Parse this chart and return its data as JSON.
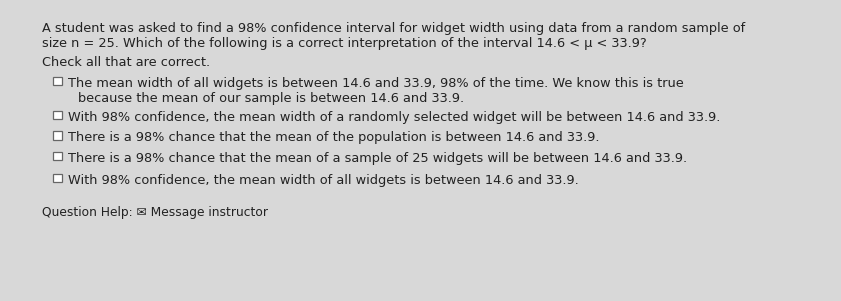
{
  "bg_color": "#d8d8d8",
  "card_color": "#f2f2f0",
  "title_line1": "A student was asked to find a 98% confidence interval for widget width using data from a random sample of",
  "title_line2": "size n = 25. Which of the following is a correct interpretation of the interval 14.6 < μ < 33.9?",
  "subtitle": "Check all that are correct.",
  "option1_line1": "The mean width of all widgets is between 14.6 and 33.9, 98% of the time. We know this is true",
  "option1_line2": "because the mean of our sample is between 14.6 and 33.9.",
  "option2": "With 98% confidence, the mean width of a randomly selected widget will be between 14.6 and 33.9.",
  "option3": "There is a 98% chance that the mean of the population is between 14.6 and 33.9.",
  "option4": "There is a 98% chance that the mean of a sample of 25 widgets will be between 14.6 and 33.9.",
  "option5": "With 98% confidence, the mean width of all widgets is between 14.6 and 33.9.",
  "footer": "Question Help: ✉ Message instructor",
  "text_color": "#222222",
  "checkbox_color": "#666666",
  "font_size": 9.3,
  "footer_font_size": 8.8
}
